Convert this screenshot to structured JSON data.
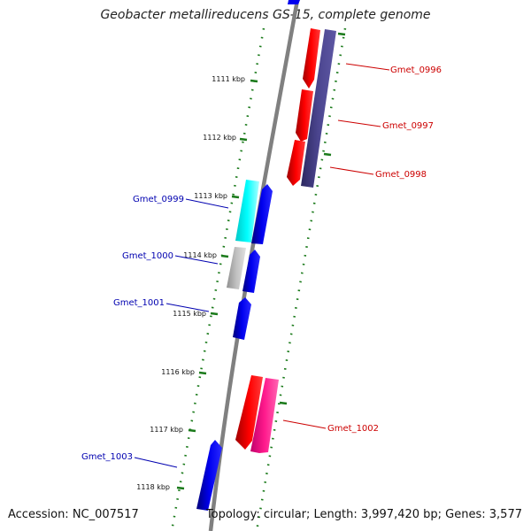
{
  "title": "Geobacter metallireducens GS-15, complete genome",
  "footer": {
    "accession": "Accession: NC_007517",
    "topology": "Topology: circular; Length: 3,997,420 bp; Genes: 3,577"
  },
  "colors": {
    "backbone": "#808080",
    "tick": "#1a7a1a",
    "label_red": "#cc0000",
    "label_blue": "#0000b0",
    "red": "#ff0000",
    "blue": "#0000ee",
    "dark_blue": "#4c4690",
    "cyan": "#00e0e0",
    "grey": "#b8b8b8",
    "pink": "#ff1a8c"
  },
  "kbp_ticks": [
    "1111 kbp",
    "1112 kbp",
    "1113 kbp",
    "1114 kbp",
    "1115 kbp",
    "1116 kbp",
    "1117 kbp",
    "1118 kbp"
  ],
  "genes": [
    {
      "label": "Gmet_0996",
      "color": "red"
    },
    {
      "label": "Gmet_0997",
      "color": "red"
    },
    {
      "label": "Gmet_0998",
      "color": "red"
    },
    {
      "label": "Gmet_0999",
      "color": "blue"
    },
    {
      "label": "Gmet_1000",
      "color": "blue"
    },
    {
      "label": "Gmet_1001",
      "color": "blue"
    },
    {
      "label": "Gmet_1002",
      "color": "red"
    },
    {
      "label": "Gmet_1003",
      "color": "blue"
    }
  ]
}
